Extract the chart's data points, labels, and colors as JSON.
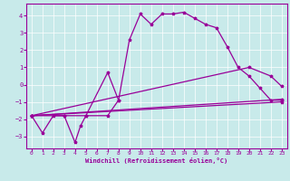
{
  "bg_color": "#c8eaea",
  "line_color": "#990099",
  "xlim": [
    -0.5,
    23.5
  ],
  "ylim": [
    -3.7,
    4.7
  ],
  "xticks": [
    0,
    1,
    2,
    3,
    4,
    5,
    6,
    7,
    8,
    9,
    10,
    11,
    12,
    13,
    14,
    15,
    16,
    17,
    18,
    19,
    20,
    21,
    22,
    23
  ],
  "yticks": [
    -3,
    -2,
    -1,
    0,
    1,
    2,
    3,
    4
  ],
  "xlabel": "Windchill (Refroidissement éolien,°C)",
  "line1_x": [
    0,
    1,
    2,
    3,
    4,
    4.5,
    5,
    7,
    8
  ],
  "line1_y": [
    -1.8,
    -2.8,
    -1.8,
    -1.8,
    -3.35,
    -2.4,
    -1.8,
    0.7,
    -0.9
  ],
  "line2_x": [
    0,
    3,
    5,
    7,
    8,
    9,
    10,
    11,
    12,
    13,
    14,
    15,
    16,
    17,
    18,
    19,
    20,
    21,
    22,
    23
  ],
  "line2_y": [
    -1.8,
    -1.8,
    -1.8,
    -1.8,
    -0.9,
    2.6,
    4.1,
    3.5,
    4.1,
    4.1,
    4.2,
    3.85,
    3.5,
    3.3,
    2.2,
    1.0,
    0.5,
    -0.2,
    -0.9,
    -0.9
  ],
  "line3_x": [
    0,
    20,
    22,
    23
  ],
  "line3_y": [
    -1.8,
    1.0,
    0.5,
    -0.1
  ],
  "line4_x": [
    0,
    23
  ],
  "line4_y": [
    -1.8,
    -1.0
  ],
  "line5_x": [
    0,
    23
  ],
  "line5_y": [
    -1.8,
    -0.85
  ]
}
